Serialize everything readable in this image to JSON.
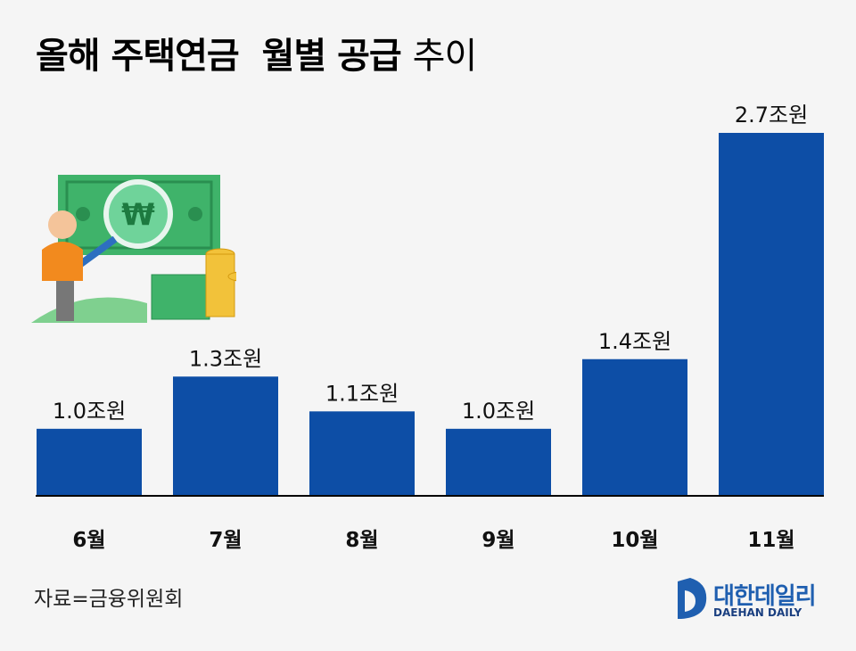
{
  "title": {
    "bold": "올해 주택연금  월별 공급",
    "light": "추이"
  },
  "source": "자료=금융위원회",
  "logo": {
    "ko": "대한데일리",
    "en": "DAEHAN DAILY"
  },
  "colors": {
    "bar": "#0d4ea6",
    "background": "#f5f5f5",
    "axis": "#000000"
  },
  "chart_data": {
    "type": "bar",
    "categories": [
      "6월",
      "7월",
      "8월",
      "9월",
      "10월",
      "11월"
    ],
    "values": [
      1.0,
      1.3,
      1.1,
      1.0,
      1.4,
      2.7
    ],
    "labels": [
      "1.0조원",
      "1.3조원",
      "1.1조원",
      "1.0조원",
      "1.4조원",
      "2.7조원"
    ],
    "unit": "조원",
    "ylim": [
      0.62,
      2.7
    ],
    "grid": false
  }
}
